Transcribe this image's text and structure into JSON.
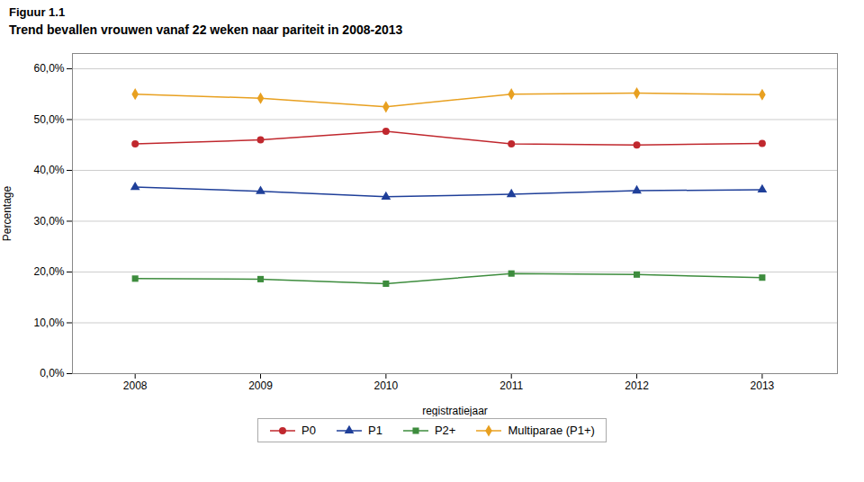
{
  "chart_data": {
    "type": "line",
    "title": "Figuur 1.1",
    "subtitle": "Trend bevallen vrouwen vanaf 22 weken naar pariteit in 2008-2013",
    "x_label": "registratiejaar",
    "y_label": "Percentage",
    "x": [
      2008,
      2009,
      2010,
      2011,
      2012,
      2013
    ],
    "series": [
      {
        "name": "P0",
        "color": "#c0282e",
        "marker": "circle",
        "values": [
          0.452,
          0.46,
          0.477,
          0.452,
          0.45,
          0.453
        ]
      },
      {
        "name": "P1",
        "color": "#1f3f99",
        "marker": "triangle",
        "values": [
          0.367,
          0.359,
          0.348,
          0.353,
          0.36,
          0.362
        ]
      },
      {
        "name": "P2+",
        "color": "#3d8c3d",
        "marker": "square",
        "values": [
          0.187,
          0.186,
          0.177,
          0.197,
          0.195,
          0.189
        ]
      },
      {
        "name": "Multiparae (P1+)",
        "color": "#e8a020",
        "marker": "diamond",
        "values": [
          0.55,
          0.542,
          0.525,
          0.55,
          0.552,
          0.549
        ]
      }
    ],
    "xlim": [
      2007.5,
      2013.6
    ],
    "xticks": [
      2008,
      2009,
      2010,
      2011,
      2012,
      2013
    ],
    "ylim": [
      0.0,
      0.63
    ],
    "yticks": [
      {
        "value": 0.0,
        "label": "0,0%"
      },
      {
        "value": 0.1,
        "label": "10,0%"
      },
      {
        "value": 0.2,
        "label": "20,0%"
      },
      {
        "value": 0.3,
        "label": "30,0%"
      },
      {
        "value": 0.4,
        "label": "40,0%"
      },
      {
        "value": 0.5,
        "label": "50,0%"
      },
      {
        "value": 0.6,
        "label": "60,0%"
      }
    ],
    "grid": true,
    "legend": "bottom"
  }
}
